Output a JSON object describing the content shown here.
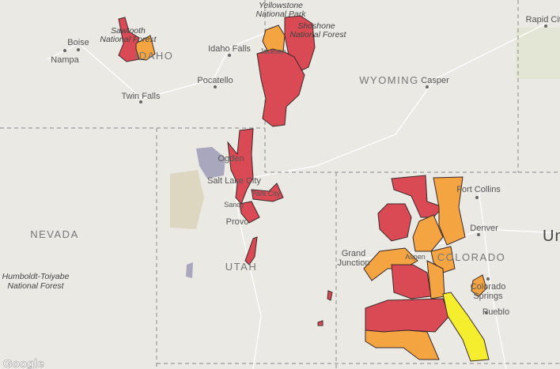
{
  "parks": [
    {
      "lines": [
        "Yellowstone",
        "National Park"
      ]
    },
    {
      "lines": [
        "Shoshone",
        "National Forest"
      ]
    },
    {
      "lines": [
        "Sawtooth",
        "National Forest"
      ]
    },
    {
      "lines": [
        "Humboldt-Toiyabe",
        "National Forest"
      ]
    }
  ],
  "states": [
    "IDAHO",
    "WYOMING",
    "NEVADA",
    "UTAH",
    "COLORADO",
    "Un"
  ],
  "cities": [
    "Boise",
    "Nampa",
    "Idaho Falls",
    "Pocatello",
    "Twin Falls",
    "Casper",
    "Rapid City",
    "Jackson",
    "Ogden",
    "Salt Lake City",
    "Park City",
    "Sandy",
    "Provo",
    "Aspen",
    "Fort Collins",
    "Denver",
    "Pueblo"
  ],
  "two_line_cities": [
    {
      "lines": [
        "Grand",
        "Junction"
      ]
    },
    {
      "lines": [
        "Colorado",
        "Springs"
      ]
    }
  ],
  "attribution": "Google"
}
